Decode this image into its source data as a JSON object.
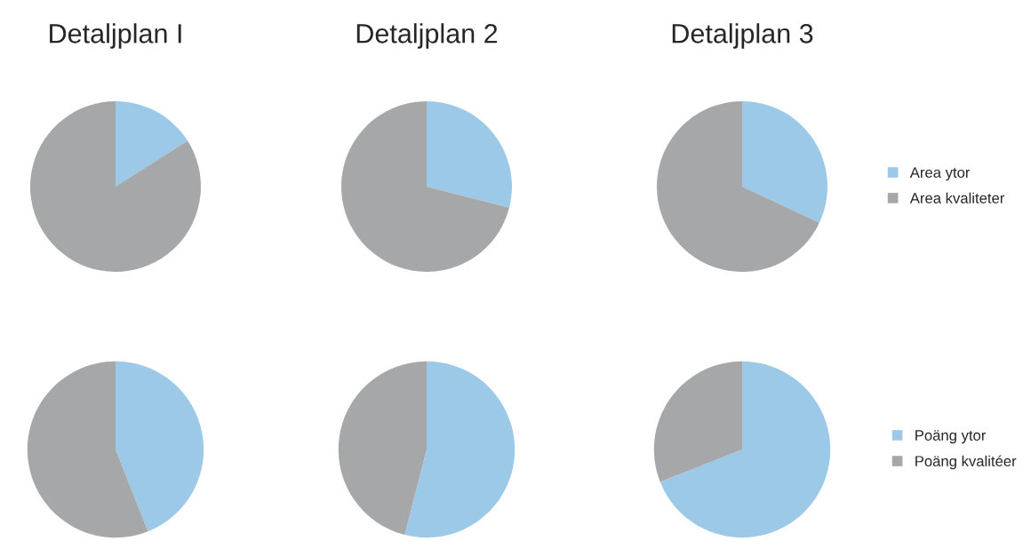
{
  "chart_data": [
    {
      "type": "pie",
      "title": "Detaljplan I",
      "categories": [
        null,
        null
      ],
      "values": [
        16,
        84
      ],
      "colors": [
        "#9dc9e9",
        "#a6a7a9"
      ],
      "legend": false
    },
    {
      "type": "pie",
      "title": "Detaljplan 2",
      "categories": [
        null,
        null
      ],
      "values": [
        29,
        71
      ],
      "colors": [
        "#9dc9e9",
        "#a6a7a9"
      ],
      "legend": false
    },
    {
      "type": "pie",
      "title": "Detaljplan 3",
      "categories": [
        "Area ytor",
        "Area kvaliteter"
      ],
      "values": [
        32,
        68
      ],
      "colors": [
        "#9dc9e9",
        "#a6a7a9"
      ],
      "legend": "right"
    },
    {
      "type": "pie",
      "categories": [
        null,
        null
      ],
      "values": [
        44,
        56
      ],
      "colors": [
        "#9dc9e9",
        "#a6a7a9"
      ],
      "legend": false
    },
    {
      "type": "pie",
      "categories": [
        null,
        null
      ],
      "values": [
        54,
        46
      ],
      "colors": [
        "#9dc9e9",
        "#a6a7a9"
      ],
      "legend": false
    },
    {
      "type": "pie",
      "categories": [
        "Poäng ytor",
        "Poäng kvalitéer"
      ],
      "values": [
        69,
        31
      ],
      "colors": [
        "#9dc9e9",
        "#a6a7a9"
      ],
      "legend": "right"
    }
  ]
}
